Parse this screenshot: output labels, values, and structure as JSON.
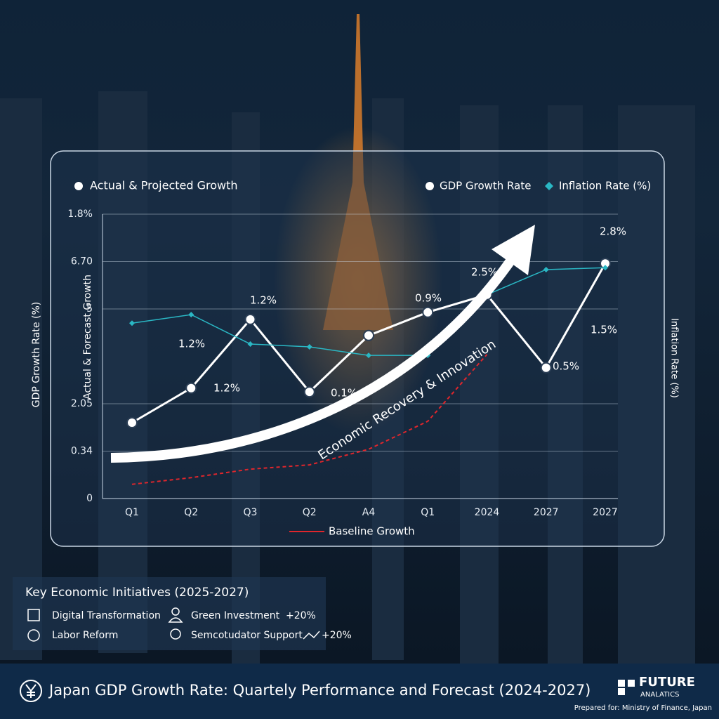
{
  "chart_data": {
    "type": "line",
    "title": "Actual & Projected Growth",
    "y_label": "GDP Growth Rate (%)",
    "y_label_inner": "Actual & Forecast Growth",
    "y2_label": "Inflation Rate (%)",
    "arrow_label": "Economic Recovery & Innovation",
    "categories": [
      "Q1",
      "Q2",
      "Q3",
      "Q2",
      "A4",
      "Q1",
      "2024",
      "2027",
      "2027"
    ],
    "ylim": [
      0,
      6
    ],
    "yticks": [
      0,
      {
        "value": 1,
        "label": "0.34"
      },
      {
        "value": 2,
        "label": "2.05"
      },
      {
        "value": 4,
        "label": "5"
      },
      {
        "value": 5,
        "label": "6.70"
      },
      {
        "value": 6,
        "label": "1.8%"
      }
    ],
    "grid": true,
    "series": [
      {
        "name": "GDP Growth Rate",
        "color": "#ffffff",
        "values": [
          1.6,
          2.33,
          3.78,
          2.25,
          3.44,
          3.93,
          4.3,
          2.76,
          4.96
        ]
      },
      {
        "name": "Inflation Rate (%)",
        "color": "#2ab7c4",
        "values": [
          3.7,
          3.88,
          3.26,
          3.2,
          3.02,
          3.02,
          4.3,
          4.83,
          4.87
        ]
      },
      {
        "name": "Baseline Growth",
        "color": "#e0262c",
        "values": [
          0.3,
          0.44,
          0.62,
          0.71,
          1.04,
          1.63,
          3.04,
          null,
          null
        ]
      }
    ],
    "annotations": [
      "1.2%",
      "1.2%",
      "1.2%",
      "0.1%",
      "0.9%",
      "2.5%",
      "0.5%",
      "2.8%",
      "1.5%"
    ]
  },
  "initiatives": {
    "title": "Key Economic Initiatives (2025-2027)",
    "items": [
      "Digital Transformation",
      "Green Investment",
      "+20%",
      "Labor Reform",
      "Semcotudator Support",
      "+20%"
    ]
  },
  "footer": {
    "title": "Japan GDP Growth Rate: Quartely Performance and Forecast (2024-2027)",
    "brand": "FUTURE",
    "brand_sub": "ANALATICS",
    "prepared": "Prepared for: Ministry of Finance, Japan"
  }
}
